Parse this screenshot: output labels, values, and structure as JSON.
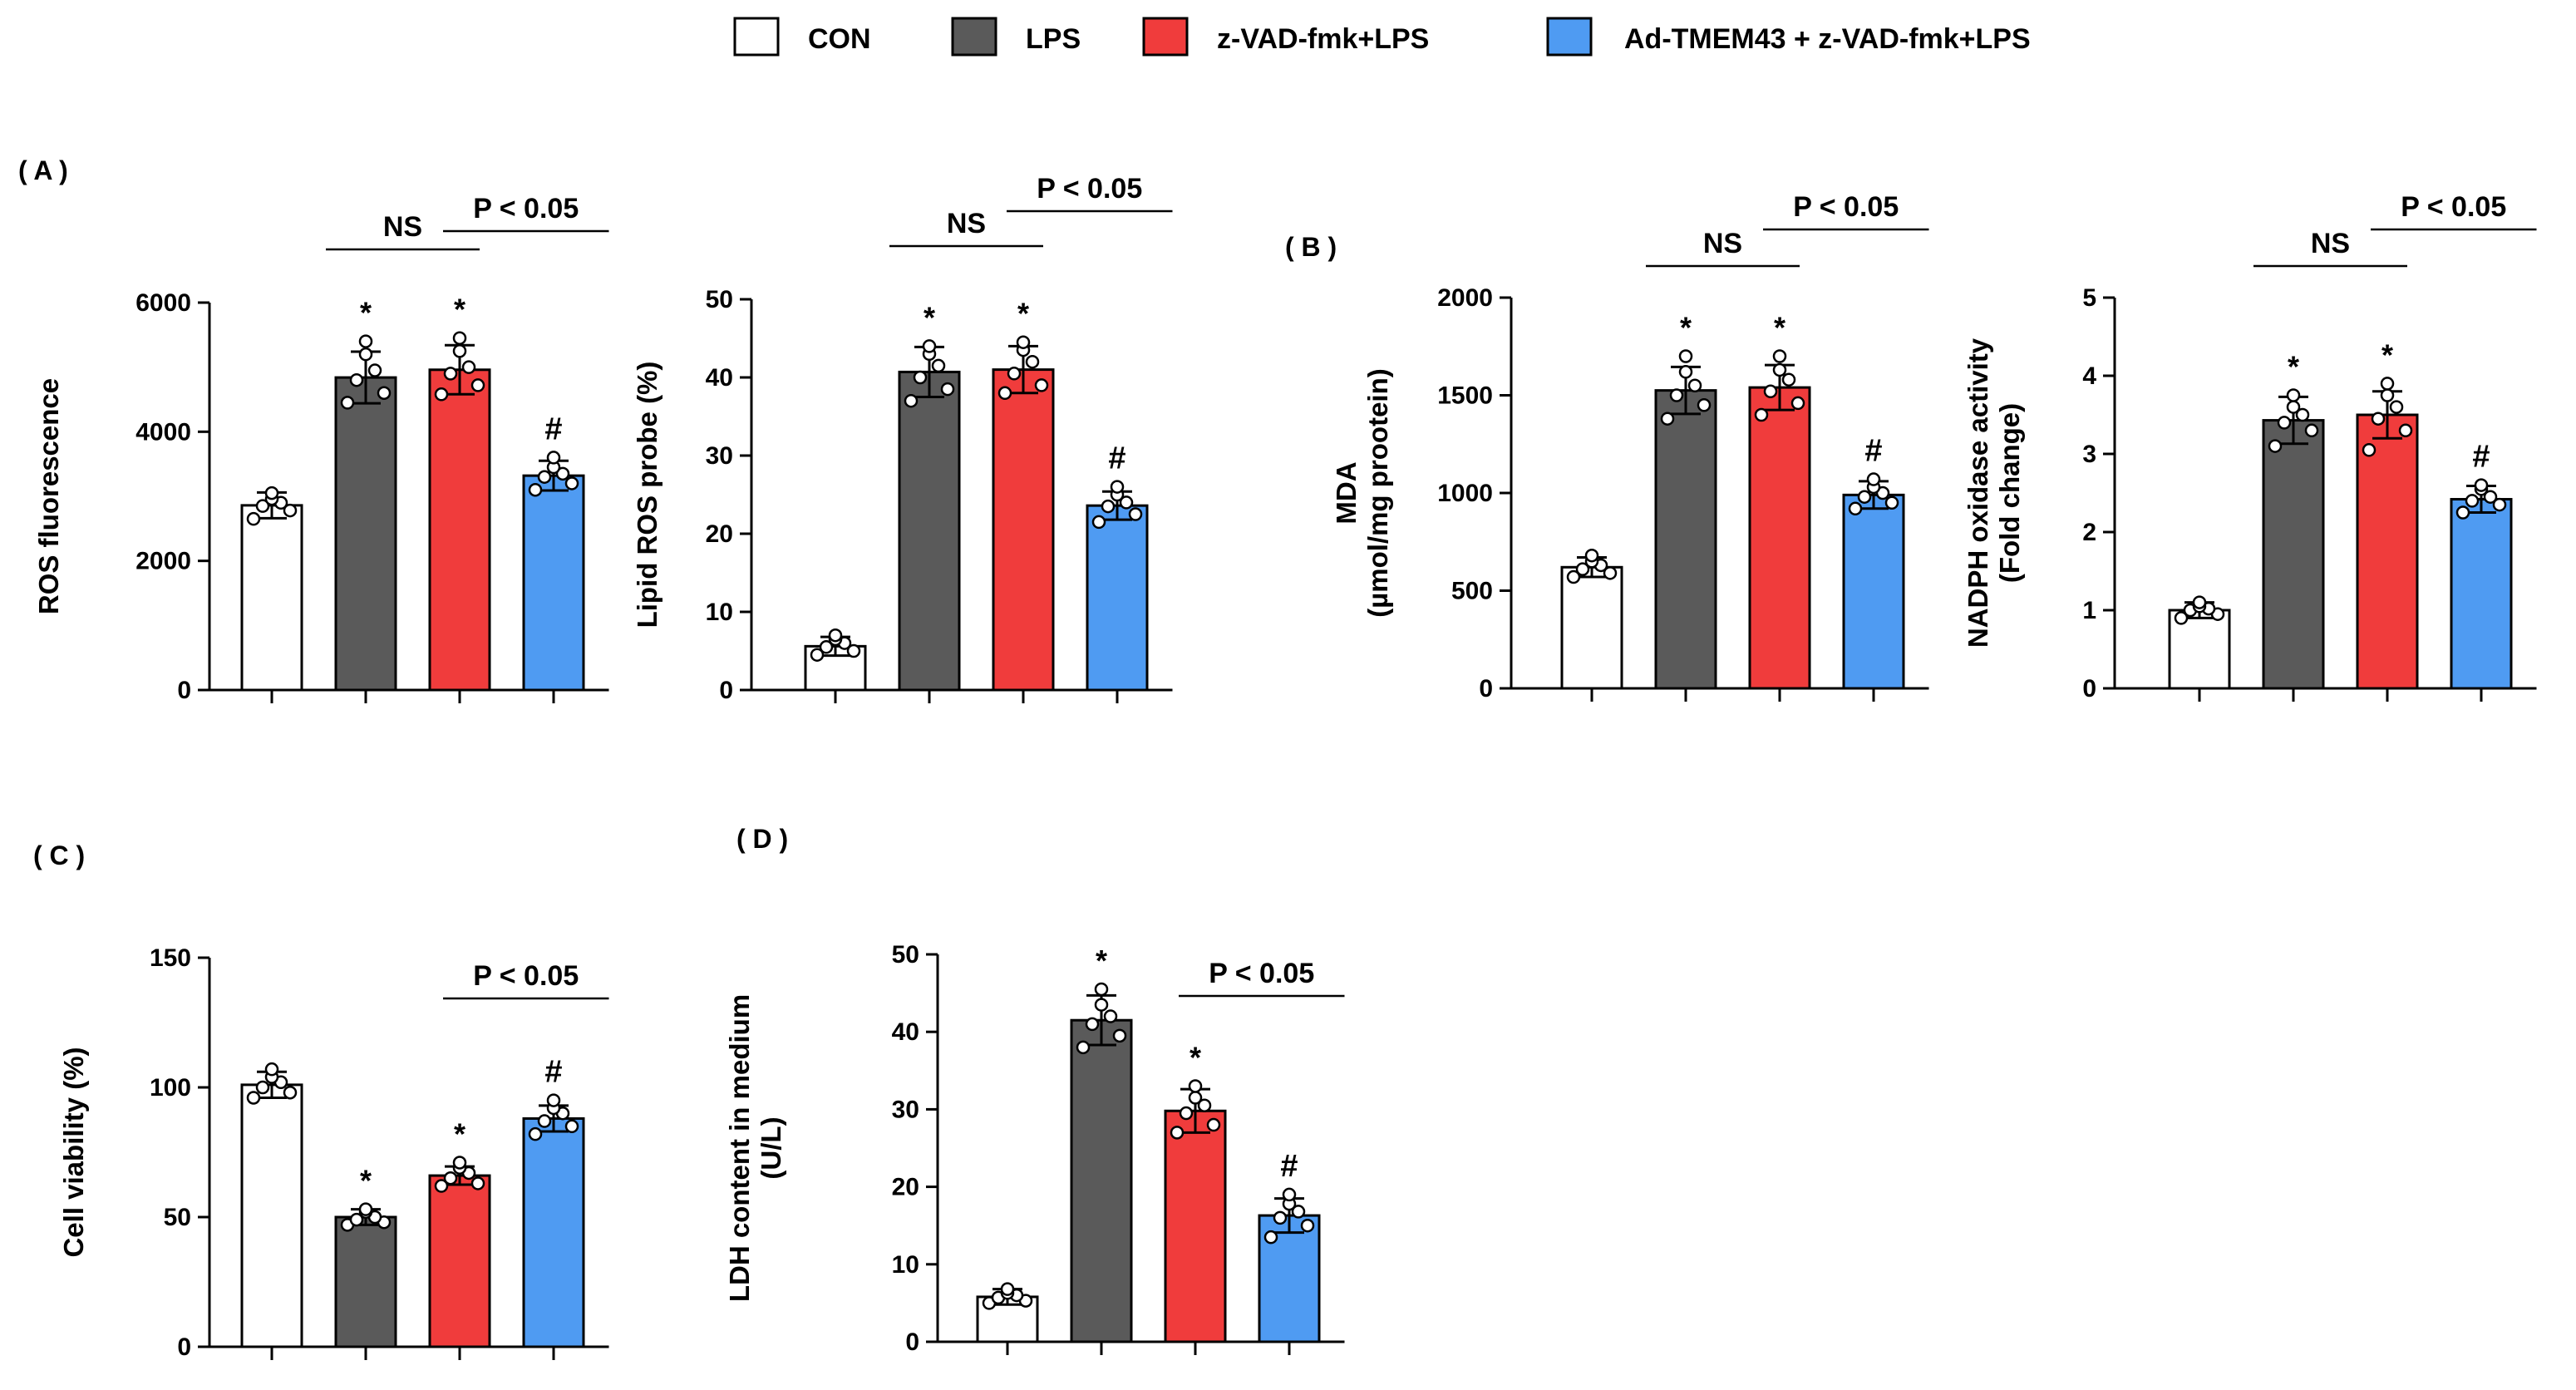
{
  "legend": {
    "items": [
      {
        "label": "CON",
        "color": "#ffffff"
      },
      {
        "label": "LPS",
        "color": "#5a5a5a"
      },
      {
        "label": "z-VAD-fmk+LPS",
        "color": "#f03c3c"
      },
      {
        "label": "Ad-TMEM43 + z-VAD-fmk+LPS",
        "color": "#4f9bf2"
      }
    ]
  },
  "panels": [
    {
      "id": "A",
      "label": "( A )"
    },
    {
      "id": "B",
      "label": "( B )"
    },
    {
      "id": "C",
      "label": "( C )"
    },
    {
      "id": "D",
      "label": "( D )"
    }
  ],
  "chart_data": [
    {
      "type": "bar",
      "panel": "A",
      "categories": [
        "CON",
        "LPS",
        "z-VAD-fmk+LPS",
        "Ad-TMEM43 + z-VAD-fmk+LPS"
      ],
      "values": [
        2860,
        4840,
        4960,
        3320
      ],
      "errors": [
        200,
        400,
        380,
        230
      ],
      "points": [
        [
          2650,
          2780,
          2850,
          2900,
          2960,
          3050
        ],
        [
          4450,
          4600,
          4800,
          4950,
          5200,
          5400
        ],
        [
          4580,
          4720,
          4900,
          5000,
          5250,
          5450
        ],
        [
          3100,
          3200,
          3300,
          3350,
          3450,
          3600
        ]
      ],
      "markers": [
        "",
        "*",
        "*",
        "#"
      ],
      "ylabel": [
        "ROS fluorescence"
      ],
      "ylim": [
        0,
        6000
      ],
      "yticks": [
        0,
        2000,
        4000,
        6000
      ],
      "annotations": [
        {
          "text": "NS",
          "from": 1,
          "to": 2
        },
        {
          "text": "P < 0.05",
          "from": 2,
          "to": 3
        }
      ]
    },
    {
      "type": "bar",
      "panel": "A",
      "categories": [
        "CON",
        "LPS",
        "z-VAD-fmk+LPS",
        "Ad-TMEM43 + z-VAD-fmk+LPS"
      ],
      "values": [
        5.6,
        40.7,
        41.0,
        23.6
      ],
      "errors": [
        1.2,
        3.2,
        3.0,
        1.8
      ],
      "points": [
        [
          4.5,
          5.0,
          5.5,
          6.0,
          6.5,
          7.0
        ],
        [
          37.0,
          38.5,
          40.0,
          41.5,
          43.0,
          44.0
        ],
        [
          38.0,
          39.0,
          40.5,
          42.0,
          43.5,
          44.5
        ],
        [
          21.5,
          22.5,
          23.5,
          24.0,
          25.0,
          26.0
        ]
      ],
      "markers": [
        "",
        "*",
        "*",
        "#"
      ],
      "ylabel": [
        "Lipid ROS probe (%)"
      ],
      "ylim": [
        0,
        50
      ],
      "yticks": [
        0,
        10,
        20,
        30,
        40,
        50
      ],
      "annotations": [
        {
          "text": "NS",
          "from": 1,
          "to": 2
        },
        {
          "text": "P < 0.05",
          "from": 2,
          "to": 3
        }
      ]
    },
    {
      "type": "bar",
      "panel": "B",
      "categories": [
        "CON",
        "LPS",
        "z-VAD-fmk+LPS",
        "Ad-TMEM43 + z-VAD-fmk+LPS"
      ],
      "values": [
        620,
        1525,
        1540,
        990
      ],
      "errors": [
        50,
        120,
        115,
        70
      ],
      "points": [
        [
          570,
          590,
          610,
          630,
          650,
          680
        ],
        [
          1380,
          1450,
          1500,
          1550,
          1620,
          1700
        ],
        [
          1400,
          1460,
          1520,
          1580,
          1630,
          1700
        ],
        [
          920,
          950,
          980,
          1000,
          1030,
          1070
        ]
      ],
      "markers": [
        "",
        "*",
        "*",
        "#"
      ],
      "ylabel": [
        "MDA",
        "(µmol/mg prootein)"
      ],
      "ylim": [
        0,
        2000
      ],
      "yticks": [
        0,
        500,
        1000,
        1500,
        2000
      ],
      "annotations": [
        {
          "text": "NS",
          "from": 1,
          "to": 2
        },
        {
          "text": "P < 0.05",
          "from": 2,
          "to": 3
        }
      ]
    },
    {
      "type": "bar",
      "panel": "B",
      "categories": [
        "CON",
        "LPS",
        "z-VAD-fmk+LPS",
        "Ad-TMEM43 + z-VAD-fmk+LPS"
      ],
      "values": [
        1.0,
        3.43,
        3.5,
        2.42
      ],
      "errors": [
        0.1,
        0.3,
        0.3,
        0.17
      ],
      "points": [
        [
          0.9,
          0.95,
          1.0,
          1.02,
          1.05,
          1.1
        ],
        [
          3.1,
          3.3,
          3.4,
          3.5,
          3.6,
          3.75
        ],
        [
          3.05,
          3.3,
          3.45,
          3.6,
          3.75,
          3.9
        ],
        [
          2.25,
          2.35,
          2.4,
          2.45,
          2.55,
          2.6
        ]
      ],
      "markers": [
        "",
        "*",
        "*",
        "#"
      ],
      "ylabel": [
        "NADPH oxidase activity",
        "(Fold change)"
      ],
      "ylim": [
        0,
        5
      ],
      "yticks": [
        0,
        1,
        2,
        3,
        4,
        5
      ],
      "annotations": [
        {
          "text": "NS",
          "from": 1,
          "to": 2
        },
        {
          "text": "P < 0.05",
          "from": 2,
          "to": 3
        }
      ]
    },
    {
      "type": "bar",
      "panel": "C",
      "categories": [
        "CON",
        "LPS",
        "z-VAD-fmk+LPS",
        "Ad-TMEM43 + z-VAD-fmk+LPS"
      ],
      "values": [
        101,
        50,
        66,
        88
      ],
      "errors": [
        5,
        3,
        3.5,
        5
      ],
      "points": [
        [
          96,
          98,
          100,
          102,
          104,
          107
        ],
        [
          47,
          48,
          49,
          50,
          52,
          53
        ],
        [
          62,
          63,
          65,
          67,
          69,
          71
        ],
        [
          82,
          85,
          87,
          90,
          92,
          95
        ]
      ],
      "markers": [
        "",
        "*",
        "*",
        "#"
      ],
      "ylabel": [
        "Cell viability (%)"
      ],
      "ylim": [
        0,
        150
      ],
      "yticks": [
        0,
        50,
        100,
        150
      ],
      "annotations": [
        {
          "text": "P < 0.05",
          "from": 2,
          "to": 3
        }
      ]
    },
    {
      "type": "bar",
      "panel": "D",
      "categories": [
        "CON",
        "LPS",
        "z-VAD-fmk+LPS",
        "Ad-TMEM43 + z-VAD-fmk+LPS"
      ],
      "values": [
        5.8,
        41.5,
        29.8,
        16.3
      ],
      "errors": [
        1.0,
        3.2,
        2.8,
        2.2
      ],
      "points": [
        [
          5.0,
          5.3,
          5.7,
          6.0,
          6.3,
          6.8
        ],
        [
          38.0,
          39.5,
          41.0,
          42.0,
          43.5,
          45.5
        ],
        [
          27.0,
          28.0,
          29.5,
          30.5,
          31.5,
          33.0
        ],
        [
          13.5,
          15.0,
          16.0,
          16.8,
          17.8,
          19.0
        ]
      ],
      "markers": [
        "",
        "*",
        "*",
        "#"
      ],
      "ylabel": [
        "LDH content in medium",
        "(U/L)"
      ],
      "ylim": [
        0,
        50
      ],
      "yticks": [
        0,
        10,
        20,
        30,
        40,
        50
      ],
      "annotations": [
        {
          "text": "P < 0.05",
          "from": 2,
          "to": 3
        }
      ]
    }
  ]
}
